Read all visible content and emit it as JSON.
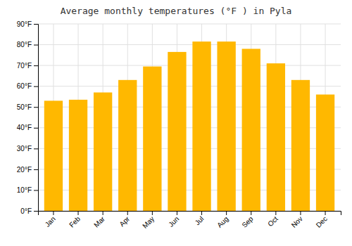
{
  "chart_data": {
    "type": "bar",
    "title": "Average monthly temperatures (°F ) in Pyla",
    "categories": [
      "Jan",
      "Feb",
      "Mar",
      "Apr",
      "May",
      "Jun",
      "Jul",
      "Aug",
      "Sep",
      "Oct",
      "Nov",
      "Dec"
    ],
    "values": [
      53,
      53.5,
      57,
      63,
      69.5,
      76.5,
      81.5,
      81.5,
      78,
      71,
      63,
      56
    ],
    "color": "#FFB800",
    "ylim": [
      0,
      90
    ],
    "yticks": [
      {
        "value": 0,
        "label": "0°F"
      },
      {
        "value": 10,
        "label": "10°F"
      },
      {
        "value": 20,
        "label": "20°F"
      },
      {
        "value": 30,
        "label": "30°F"
      },
      {
        "value": 40,
        "label": "40°F"
      },
      {
        "value": 50,
        "label": "50°F"
      },
      {
        "value": 60,
        "label": "60°F"
      },
      {
        "value": 70,
        "label": "70°F"
      },
      {
        "value": 80,
        "label": "80°F"
      },
      {
        "value": 90,
        "label": "90°F"
      }
    ],
    "grid": true
  }
}
